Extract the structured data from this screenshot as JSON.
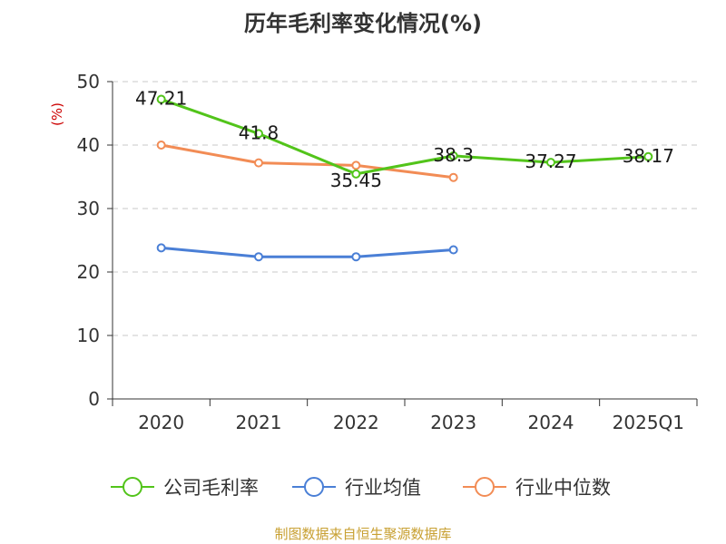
{
  "chart_data": {
    "type": "line",
    "title": "历年毛利率变化情况(%)",
    "ylabel": "(%)",
    "xlabel": "",
    "categories": [
      "2020",
      "2021",
      "2022",
      "2023",
      "2024",
      "2025Q1"
    ],
    "ylim": [
      0,
      50
    ],
    "yticks": [
      0,
      10,
      20,
      30,
      40,
      50
    ],
    "grid": true,
    "legend_position": "bottom",
    "series": [
      {
        "name": "公司毛利率",
        "color": "#52c41a",
        "values": [
          47.21,
          41.8,
          35.45,
          38.3,
          37.27,
          38.17
        ],
        "labels": [
          "47.21",
          "41.8",
          "35.45",
          "38.3",
          "37.27",
          "38.17"
        ]
      },
      {
        "name": "行业均值",
        "color": "#4a7fd6",
        "values": [
          23.8,
          22.4,
          22.4,
          23.5,
          null,
          null
        ]
      },
      {
        "name": "行业中位数",
        "color": "#f28c55",
        "values": [
          40.0,
          37.2,
          36.8,
          34.9,
          null,
          null
        ]
      }
    ],
    "source": "制图数据来自恒生聚源数据库"
  }
}
